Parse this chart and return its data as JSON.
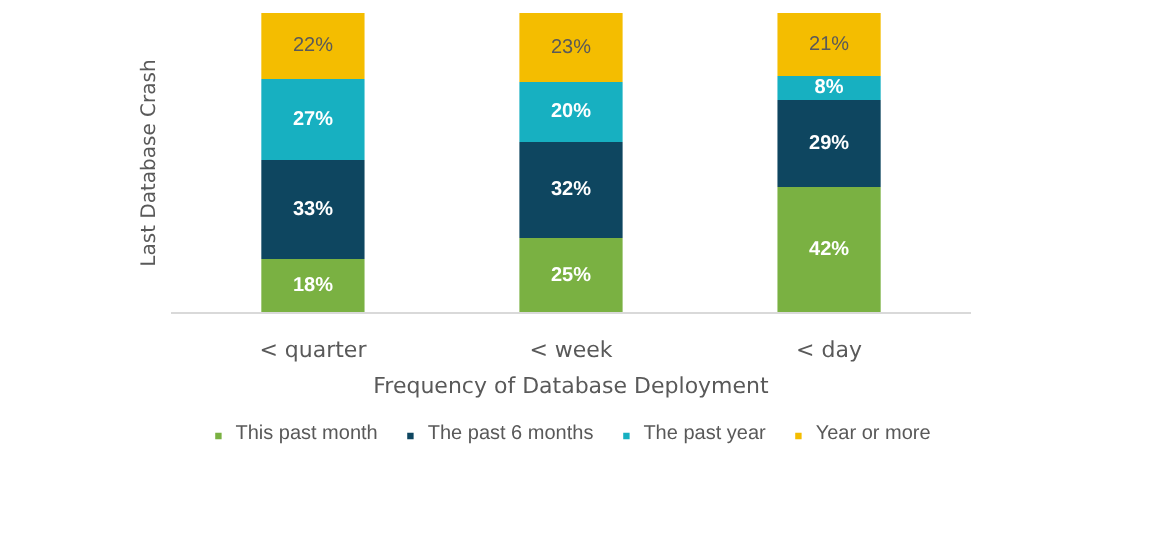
{
  "chart_data": {
    "type": "bar",
    "stacked": true,
    "xlabel": "Frequency of Database Deployment",
    "ylabel": "Last Database Crash",
    "categories": [
      "< quarter",
      "< week",
      "< day"
    ],
    "series": [
      {
        "name": "This past month",
        "color": "#7ab142",
        "values": [
          18,
          25,
          42
        ],
        "value_labels": [
          "18%",
          "25%",
          "42%"
        ]
      },
      {
        "name": "The past 6 months",
        "color": "#0e4660",
        "values": [
          33,
          32,
          29
        ],
        "value_labels": [
          "33%",
          "32%",
          "29%"
        ]
      },
      {
        "name": "The past year",
        "color": "#17b0c1",
        "values": [
          27,
          20,
          8
        ],
        "value_labels": [
          "27%",
          "20%",
          "8%"
        ]
      },
      {
        "name": "Year or more",
        "color": "#f4bd00",
        "values": [
          22,
          23,
          21
        ],
        "value_labels": [
          "22%",
          "23%",
          "21%"
        ]
      }
    ],
    "tick_labels": "x",
    "legend": "bottom"
  }
}
